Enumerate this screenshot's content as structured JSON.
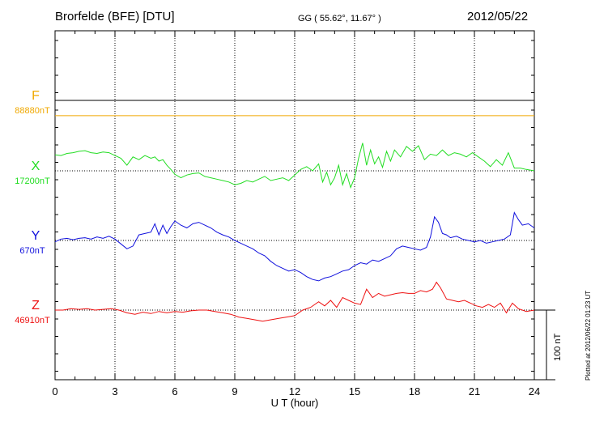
{
  "header": {
    "title": "Brorfelde (BFE)  [DTU]",
    "coords": "GG ( 55.62°,  11.67° )",
    "date": "2012/05/22"
  },
  "footnote": "Plotted at 2012/06/22 01:23 UT",
  "chart_data": {
    "type": "line",
    "xlabel": "U T (hour)",
    "xlim": [
      0,
      24
    ],
    "xticks": [
      "0",
      "3",
      "6",
      "9",
      "12",
      "15",
      "18",
      "21",
      "24"
    ],
    "grid": true,
    "scale_bar": "100 nT",
    "series": [
      {
        "name": "F",
        "baseline_label": "88880nT",
        "color": "#f0a800",
        "x": [
          0,
          24
        ],
        "y": [
          -22,
          -22
        ]
      },
      {
        "name": "X",
        "baseline_label": "17200nT",
        "color": "#22dd22",
        "x": [
          0,
          0.3,
          0.6,
          0.9,
          1.2,
          1.5,
          1.8,
          2.1,
          2.4,
          2.7,
          3.0,
          3.3,
          3.6,
          3.9,
          4.2,
          4.5,
          4.8,
          5.0,
          5.2,
          5.4,
          5.6,
          5.8,
          6.0,
          6.3,
          6.6,
          6.9,
          7.2,
          7.5,
          7.8,
          8.1,
          8.4,
          8.7,
          9.0,
          9.3,
          9.6,
          9.9,
          10.2,
          10.5,
          10.8,
          11.1,
          11.4,
          11.7,
          12.0,
          12.3,
          12.6,
          12.9,
          13.2,
          13.4,
          13.6,
          13.8,
          14.0,
          14.2,
          14.4,
          14.6,
          14.8,
          15.0,
          15.2,
          15.4,
          15.6,
          15.8,
          16.0,
          16.2,
          16.4,
          16.6,
          16.8,
          17.0,
          17.3,
          17.6,
          17.9,
          18.2,
          18.5,
          18.8,
          19.1,
          19.4,
          19.7,
          20.0,
          20.3,
          20.6,
          20.9,
          21.2,
          21.5,
          21.8,
          22.1,
          22.4,
          22.7,
          23.0,
          23.3,
          23.6,
          24.0
        ],
        "y": [
          23,
          22,
          25,
          26,
          28,
          29,
          26,
          25,
          27,
          26,
          22,
          18,
          8,
          20,
          16,
          22,
          18,
          20,
          14,
          16,
          8,
          2,
          -5,
          -10,
          -6,
          -4,
          -3,
          -8,
          -10,
          -12,
          -14,
          -16,
          -20,
          -18,
          -14,
          -16,
          -12,
          -8,
          -14,
          -12,
          -10,
          -14,
          -6,
          2,
          6,
          0,
          10,
          -16,
          -2,
          -20,
          -10,
          8,
          -20,
          -4,
          -24,
          -10,
          18,
          40,
          8,
          30,
          10,
          20,
          5,
          28,
          14,
          30,
          20,
          35,
          28,
          36,
          16,
          24,
          22,
          30,
          22,
          26,
          24,
          20,
          26,
          20,
          14,
          6,
          16,
          8,
          26,
          4,
          4,
          2,
          0
        ]
      },
      {
        "name": "Y",
        "baseline_label": "670nT",
        "color": "#1010dd",
        "x": [
          0,
          0.3,
          0.6,
          0.9,
          1.2,
          1.5,
          1.8,
          2.1,
          2.4,
          2.7,
          3.0,
          3.3,
          3.6,
          3.9,
          4.2,
          4.5,
          4.8,
          5.0,
          5.2,
          5.4,
          5.6,
          5.8,
          6.0,
          6.3,
          6.6,
          6.9,
          7.2,
          7.5,
          7.8,
          8.1,
          8.4,
          8.7,
          9.0,
          9.3,
          9.6,
          9.9,
          10.2,
          10.5,
          10.8,
          11.1,
          11.4,
          11.7,
          12.0,
          12.3,
          12.6,
          12.9,
          13.2,
          13.5,
          13.8,
          14.1,
          14.4,
          14.7,
          15.0,
          15.3,
          15.6,
          15.9,
          16.2,
          16.5,
          16.8,
          17.1,
          17.4,
          17.7,
          18.0,
          18.3,
          18.6,
          18.8,
          19.0,
          19.2,
          19.4,
          19.6,
          19.8,
          20.1,
          20.4,
          20.7,
          21.0,
          21.3,
          21.6,
          21.9,
          22.2,
          22.5,
          22.8,
          23.0,
          23.2,
          23.4,
          23.7,
          24.0
        ],
        "y": [
          -2,
          2,
          3,
          1,
          3,
          4,
          2,
          5,
          3,
          6,
          2,
          -5,
          -12,
          -8,
          8,
          10,
          12,
          24,
          8,
          22,
          10,
          20,
          28,
          22,
          18,
          24,
          26,
          22,
          18,
          12,
          8,
          5,
          0,
          -4,
          -8,
          -12,
          -18,
          -22,
          -30,
          -36,
          -40,
          -44,
          -42,
          -46,
          -52,
          -56,
          -58,
          -54,
          -52,
          -48,
          -44,
          -42,
          -36,
          -32,
          -34,
          -28,
          -30,
          -26,
          -22,
          -12,
          -8,
          -10,
          -12,
          -14,
          -10,
          5,
          34,
          26,
          10,
          8,
          4,
          6,
          2,
          0,
          -2,
          0,
          -4,
          -2,
          0,
          2,
          8,
          40,
          30,
          22,
          24,
          18
        ]
      },
      {
        "name": "Z",
        "baseline_label": "46910nT",
        "color": "#ee1111",
        "x": [
          0,
          0.4,
          0.8,
          1.2,
          1.6,
          2.0,
          2.4,
          2.8,
          3.2,
          3.6,
          4.0,
          4.4,
          4.8,
          5.2,
          5.6,
          6.0,
          6.4,
          6.8,
          7.2,
          7.6,
          8.0,
          8.4,
          8.8,
          9.2,
          9.6,
          10.0,
          10.4,
          10.8,
          11.2,
          11.6,
          12.0,
          12.4,
          12.8,
          13.2,
          13.5,
          13.8,
          14.1,
          14.4,
          14.7,
          15.0,
          15.3,
          15.6,
          15.9,
          16.2,
          16.5,
          16.8,
          17.1,
          17.4,
          17.7,
          18.0,
          18.3,
          18.6,
          18.9,
          19.1,
          19.3,
          19.6,
          19.9,
          20.2,
          20.5,
          20.8,
          21.1,
          21.4,
          21.7,
          22.0,
          22.3,
          22.6,
          22.9,
          23.2,
          23.6,
          24.0
        ],
        "y": [
          0,
          0,
          2,
          1,
          2,
          0,
          1,
          2,
          0,
          -4,
          -6,
          -3,
          -5,
          -2,
          -4,
          -2,
          -3,
          -1,
          0,
          0,
          -2,
          -4,
          -6,
          -10,
          -12,
          -14,
          -16,
          -14,
          -12,
          -10,
          -8,
          0,
          4,
          12,
          6,
          14,
          4,
          18,
          14,
          10,
          8,
          30,
          18,
          24,
          20,
          22,
          24,
          25,
          24,
          24,
          28,
          26,
          30,
          40,
          32,
          16,
          14,
          12,
          14,
          10,
          6,
          4,
          8,
          4,
          10,
          -4,
          10,
          2,
          -2,
          0
        ]
      }
    ]
  }
}
